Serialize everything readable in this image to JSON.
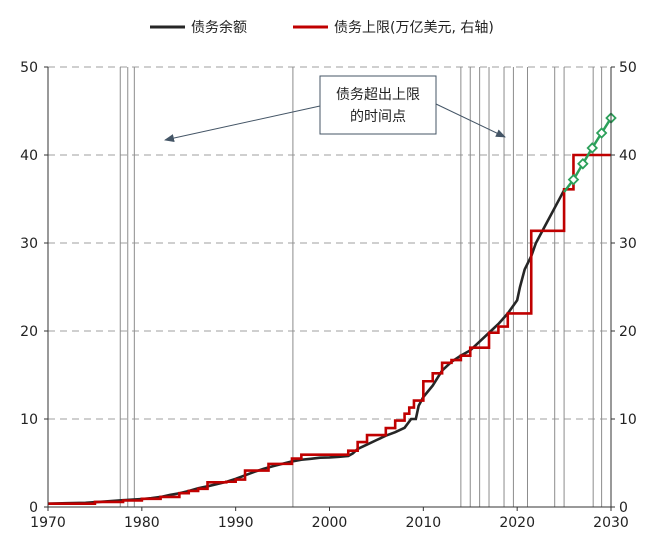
{
  "chart_data": {
    "type": "line",
    "title": "",
    "xlabel": "",
    "ylabel": "",
    "xlim": [
      1970,
      2030
    ],
    "ylim": [
      0,
      50
    ],
    "y2lim": [
      0,
      50
    ],
    "x_ticks": [
      "1970",
      "1980",
      "1990",
      "2000",
      "2010",
      "2020",
      "2030"
    ],
    "y_ticks": [
      "0",
      "10",
      "20",
      "30",
      "40",
      "50"
    ],
    "y2_ticks": [
      "0",
      "10",
      "20",
      "30",
      "40",
      "50"
    ],
    "grid": "horizontal dashed",
    "legend": {
      "position": "top",
      "entries": [
        {
          "label": "债务余额",
          "color": "#262626"
        },
        {
          "label": "债务上限(万亿美元, 右轴)",
          "color": "#c00000"
        }
      ]
    },
    "annotation": {
      "line1": "债务超出上限",
      "line2": "的时间点"
    },
    "event_years": [
      1977.7,
      1978.5,
      1979.2,
      1996.1,
      2014.0,
      2015.0,
      2016.0,
      2017.0,
      2018.6,
      2019.6,
      2021.1,
      2024.0,
      2025.0,
      2028.1,
      2029.0
    ],
    "series": [
      {
        "name": "债务余额",
        "color": "#262626",
        "points": [
          [
            1970.0,
            0.38
          ],
          [
            1972.0,
            0.43
          ],
          [
            1974.0,
            0.48
          ],
          [
            1976.0,
            0.62
          ],
          [
            1978.0,
            0.77
          ],
          [
            1980.0,
            0.91
          ],
          [
            1981.0,
            1.0
          ],
          [
            1982.0,
            1.14
          ],
          [
            1983.0,
            1.37
          ],
          [
            1984.0,
            1.56
          ],
          [
            1985.0,
            1.82
          ],
          [
            1986.0,
            2.13
          ],
          [
            1987.0,
            2.35
          ],
          [
            1988.0,
            2.6
          ],
          [
            1989.0,
            2.86
          ],
          [
            1990.0,
            3.2
          ],
          [
            1991.0,
            3.6
          ],
          [
            1992.0,
            4.0
          ],
          [
            1993.0,
            4.35
          ],
          [
            1994.0,
            4.64
          ],
          [
            1995.0,
            4.92
          ],
          [
            1996.0,
            5.18
          ],
          [
            1997.0,
            5.37
          ],
          [
            1998.0,
            5.48
          ],
          [
            1999.0,
            5.6
          ],
          [
            2000.0,
            5.63
          ],
          [
            2001.0,
            5.7
          ],
          [
            2002.0,
            5.8
          ],
          [
            2002.5,
            6.1
          ],
          [
            2003.0,
            6.6
          ],
          [
            2004.0,
            7.1
          ],
          [
            2005.0,
            7.6
          ],
          [
            2006.0,
            8.1
          ],
          [
            2007.0,
            8.5
          ],
          [
            2008.0,
            9.0
          ],
          [
            2008.7,
            10.0
          ],
          [
            2009.2,
            10.0
          ],
          [
            2009.5,
            11.5
          ],
          [
            2010.0,
            12.5
          ],
          [
            2011.0,
            13.8
          ],
          [
            2012.0,
            15.5
          ],
          [
            2013.0,
            16.5
          ],
          [
            2014.0,
            17.2
          ],
          [
            2015.0,
            17.8
          ],
          [
            2016.0,
            18.8
          ],
          [
            2017.0,
            19.8
          ],
          [
            2018.0,
            20.8
          ],
          [
            2019.0,
            22.0
          ],
          [
            2020.0,
            23.5
          ],
          [
            2020.3,
            25.0
          ],
          [
            2020.8,
            27.0
          ],
          [
            2021.5,
            28.5
          ],
          [
            2022.0,
            30.0
          ],
          [
            2023.0,
            32.0
          ],
          [
            2024.0,
            34.0
          ],
          [
            2025.0,
            36.0
          ]
        ]
      },
      {
        "name": "债务上限(万亿美元, 右轴)",
        "color": "#c00000",
        "points": [
          [
            1970.0,
            0.38
          ],
          [
            1975.0,
            0.58
          ],
          [
            1978.0,
            0.74
          ],
          [
            1980.0,
            0.93
          ],
          [
            1982.0,
            1.14
          ],
          [
            1984.0,
            1.57
          ],
          [
            1985.0,
            1.82
          ],
          [
            1986.0,
            2.07
          ],
          [
            1987.0,
            2.8
          ],
          [
            1989.0,
            2.87
          ],
          [
            1990.0,
            3.12
          ],
          [
            1991.0,
            4.14
          ],
          [
            1993.0,
            4.14
          ],
          [
            1993.5,
            4.9
          ],
          [
            1996.0,
            5.5
          ],
          [
            1997.0,
            5.95
          ],
          [
            2002.0,
            6.4
          ],
          [
            2003.0,
            7.38
          ],
          [
            2004.0,
            8.18
          ],
          [
            2006.0,
            8.97
          ],
          [
            2007.0,
            9.82
          ],
          [
            2008.0,
            10.6
          ],
          [
            2008.5,
            11.3
          ],
          [
            2009.0,
            12.1
          ],
          [
            2010.0,
            14.29
          ],
          [
            2011.0,
            15.19
          ],
          [
            2012.0,
            16.39
          ],
          [
            2013.0,
            16.7
          ],
          [
            2014.0,
            17.2
          ],
          [
            2015.0,
            18.1
          ],
          [
            2017.0,
            19.8
          ],
          [
            2018.0,
            20.5
          ],
          [
            2019.0,
            22.0
          ],
          [
            2021.5,
            31.38
          ],
          [
            2025.0,
            36.1
          ],
          [
            2026.0,
            40.0
          ],
          [
            2030.0,
            40.0
          ]
        ]
      },
      {
        "name": "",
        "color": "#2ca05a",
        "marker": "diamond",
        "points": [
          [
            2025.0,
            35.8
          ],
          [
            2026.0,
            37.2
          ],
          [
            2027.0,
            39.0
          ],
          [
            2028.0,
            40.8
          ],
          [
            2029.0,
            42.5
          ],
          [
            2030.0,
            44.2
          ]
        ]
      }
    ]
  }
}
